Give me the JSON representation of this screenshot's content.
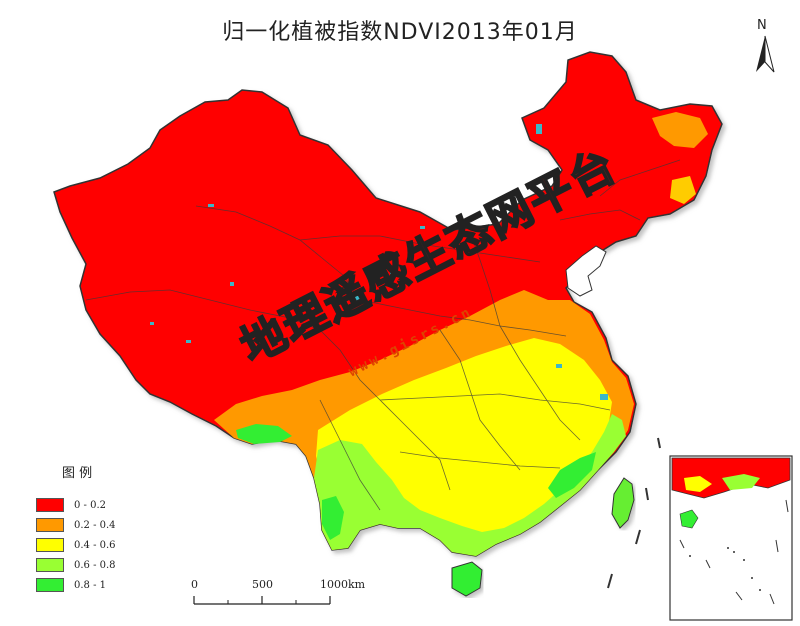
{
  "title": "归一化植被指数NDVI2013年01月",
  "north_arrow": {
    "letter": "N"
  },
  "legend": {
    "title": "图 例",
    "items": [
      {
        "label": "0 - 0.2",
        "color": "#ff0000"
      },
      {
        "label": "0.2 - 0.4",
        "color": "#ff9900"
      },
      {
        "label": "0.4 - 0.6",
        "color": "#ffff00"
      },
      {
        "label": "0.6 - 0.8",
        "color": "#99ff33"
      },
      {
        "label": "0.8 - 1",
        "color": "#33ee33"
      }
    ]
  },
  "scale_bar": {
    "ticks": [
      "0",
      "500",
      "1000"
    ],
    "unit": "km"
  },
  "watermark": {
    "text": "地理遥感生态网平台",
    "url": "www.gisrs.cn"
  },
  "colors": {
    "water": "#3bb7c8",
    "border": "#333333",
    "shadow": "#bfbfbf"
  }
}
